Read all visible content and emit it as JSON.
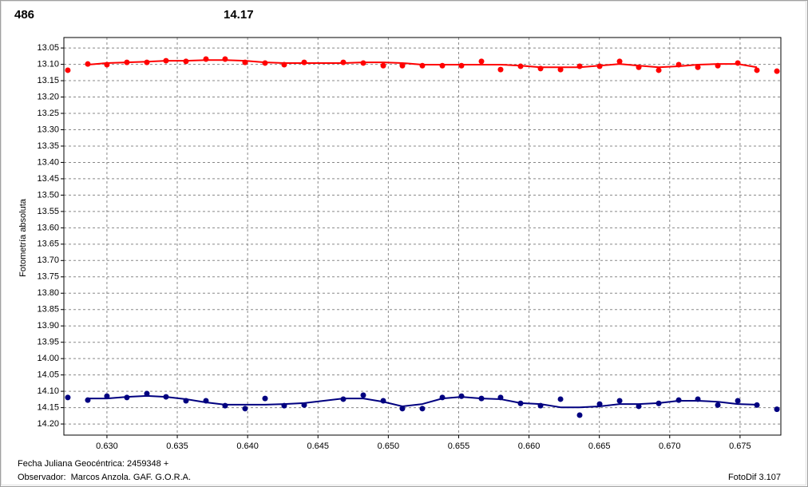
{
  "chart_data": {
    "type": "scatter",
    "annotations": [
      {
        "text": "486",
        "color": "#ff0000"
      },
      {
        "text": "14.17",
        "color": "#000080"
      }
    ],
    "ylabel": "Fotometría absoluta",
    "footer": {
      "date": "Fecha Juliana Geocéntrica: 2459348 +",
      "observer": "Observador:  Marcos Anzola. GAF. G.O.R.A.",
      "software": "FotoDif 3.107"
    },
    "xlim": [
      0.62694,
      0.6779
    ],
    "ylim": [
      13.018,
      14.234
    ],
    "y_inverted": true,
    "grid": true,
    "xticks": [
      {
        "value": 0.63,
        "label": "0.630"
      },
      0.635,
      {
        "value": 0.64,
        "label": "0.640"
      },
      0.645,
      {
        "value": 0.65,
        "label": "0.650"
      },
      0.655,
      {
        "value": 0.66,
        "label": "0.660"
      },
      0.665,
      {
        "value": 0.67,
        "label": "0.670"
      },
      0.675
    ],
    "yticks": [
      13.05,
      {
        "value": 13.1,
        "label": "13.10"
      },
      13.15,
      {
        "value": 13.2,
        "label": "13.20"
      },
      13.25,
      {
        "value": 13.3,
        "label": "13.30"
      },
      13.35,
      {
        "value": 13.4,
        "label": "13.40"
      },
      13.45,
      {
        "value": 13.5,
        "label": "13.50"
      },
      13.55,
      {
        "value": 13.6,
        "label": "13.60"
      },
      13.65,
      {
        "value": 13.7,
        "label": "13.70"
      },
      13.75,
      {
        "value": 13.8,
        "label": "13.80"
      },
      13.85,
      {
        "value": 13.9,
        "label": "13.90"
      },
      13.95,
      {
        "value": 14,
        "label": "14.00"
      },
      14.05,
      {
        "value": 14.1,
        "label": "14.10"
      },
      14.15,
      {
        "value": 14.2,
        "label": "14.20"
      }
    ],
    "x": [
      0.62722,
      0.62864,
      0.63,
      0.63142,
      0.63284,
      0.6342,
      0.63562,
      0.63704,
      0.6384,
      0.63982,
      0.64124,
      0.6426,
      0.64402,
      0.6468,
      0.64822,
      0.64964,
      0.651,
      0.65242,
      0.65384,
      0.6552,
      0.65662,
      0.65798,
      0.6594,
      0.66082,
      0.66224,
      0.6636,
      0.66502,
      0.66644,
      0.6678,
      0.66922,
      0.67064,
      0.672,
      0.67342,
      0.67484,
      0.6762,
      0.67762
    ],
    "series": [
      {
        "color": "#ff0000",
        "values": [
          13.118,
          13.099,
          13.101,
          13.094,
          13.094,
          13.089,
          13.091,
          13.084,
          13.084,
          13.094,
          13.096,
          13.101,
          13.094,
          13.094,
          13.096,
          13.104,
          13.104,
          13.104,
          13.104,
          13.104,
          13.091,
          13.116,
          13.106,
          13.113,
          13.116,
          13.106,
          13.106,
          13.091,
          13.109,
          13.118,
          13.101,
          13.109,
          13.104,
          13.096,
          13.118,
          13.121
        ]
      },
      {
        "color": "#000080",
        "values": [
          14.119,
          14.127,
          14.115,
          14.119,
          14.107,
          14.117,
          14.129,
          14.129,
          14.144,
          14.153,
          14.122,
          14.144,
          14.142,
          14.124,
          14.112,
          14.129,
          14.153,
          14.153,
          14.119,
          14.115,
          14.122,
          14.119,
          14.137,
          14.144,
          14.124,
          14.173,
          14.139,
          14.129,
          14.146,
          14.137,
          14.127,
          14.124,
          14.142,
          14.129,
          14.142,
          14.155
        ]
      }
    ],
    "fits": [
      {
        "color": "#ff0000",
        "x": [
          0.62864,
          0.63,
          0.63142,
          0.63284,
          0.6342,
          0.63562,
          0.63704,
          0.6384,
          0.63982,
          0.64124,
          0.6426,
          0.64402,
          0.6468,
          0.64822,
          0.64964,
          0.651,
          0.65242,
          0.65384,
          0.6552,
          0.65662,
          0.65798,
          0.6594,
          0.66082,
          0.66224,
          0.6636,
          0.66502,
          0.66644,
          0.6678,
          0.66922,
          0.67064,
          0.672,
          0.67342,
          0.67484,
          0.6762
        ],
        "values": [
          13.101,
          13.096,
          13.094,
          13.092,
          13.089,
          13.089,
          13.087,
          13.087,
          13.089,
          13.094,
          13.096,
          13.096,
          13.096,
          13.094,
          13.094,
          13.096,
          13.101,
          13.101,
          13.101,
          13.101,
          13.101,
          13.104,
          13.109,
          13.109,
          13.109,
          13.104,
          13.099,
          13.104,
          13.109,
          13.106,
          13.101,
          13.099,
          13.099,
          13.109
        ]
      },
      {
        "color": "#000080",
        "x": [
          0.62864,
          0.63,
          0.63142,
          0.63284,
          0.6342,
          0.63562,
          0.63704,
          0.6384,
          0.63982,
          0.64124,
          0.6426,
          0.64402,
          0.6468,
          0.64822,
          0.64964,
          0.651,
          0.65242,
          0.65384,
          0.6552,
          0.65662,
          0.65798,
          0.6594,
          0.66082,
          0.66224,
          0.6636,
          0.66502,
          0.66644,
          0.6678,
          0.66922,
          0.67064,
          0.672,
          0.67342,
          0.67484,
          0.6762
        ],
        "values": [
          14.122,
          14.122,
          14.117,
          14.114,
          14.117,
          14.124,
          14.134,
          14.141,
          14.141,
          14.141,
          14.139,
          14.136,
          14.122,
          14.122,
          14.132,
          14.146,
          14.139,
          14.122,
          14.117,
          14.122,
          14.124,
          14.136,
          14.139,
          14.149,
          14.149,
          14.146,
          14.139,
          14.139,
          14.136,
          14.129,
          14.129,
          14.132,
          14.139,
          14.141
        ]
      }
    ]
  }
}
